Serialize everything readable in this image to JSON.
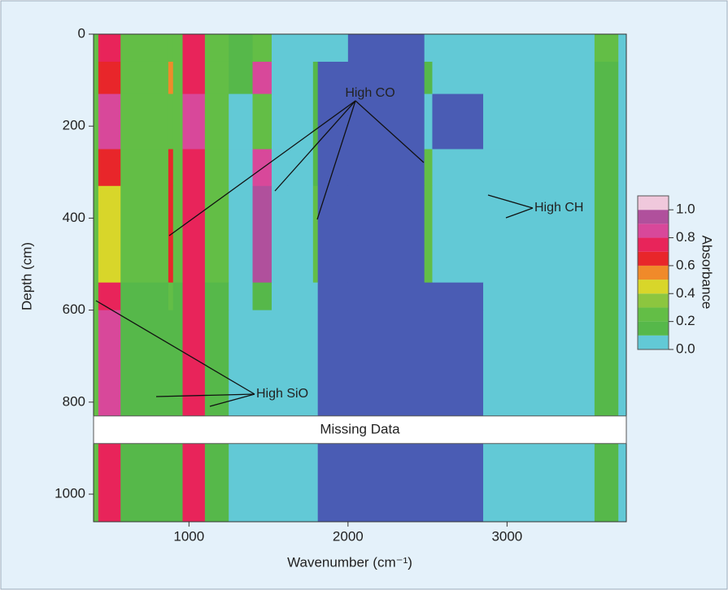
{
  "chart_data": {
    "type": "heatmap",
    "xlabel": "Wavenumber (cm⁻¹)",
    "ylabel": "Depth (cm)",
    "xlim": [
      400,
      3750
    ],
    "ylim": [
      0,
      1060
    ],
    "xticks": [
      1000,
      2000,
      3000
    ],
    "yticks": [
      0,
      200,
      400,
      600,
      800,
      1000
    ],
    "x_edges": [
      400,
      430,
      570,
      870,
      900,
      960,
      1100,
      1250,
      1400,
      1520,
      1780,
      1810,
      2000,
      2480,
      2530,
      2850,
      3550,
      3700,
      3750
    ],
    "y_edges": [
      0,
      60,
      130,
      250,
      330,
      540,
      600,
      830,
      890,
      1060
    ],
    "z": [
      [
        0.25,
        0.75,
        0.25,
        0.25,
        0.25,
        0.75,
        0.25,
        0.15,
        0.25,
        0.05,
        0.05,
        0.0,
        -0.1,
        0.05,
        0.05,
        0.05,
        0.25,
        0.05
      ],
      [
        0.25,
        0.65,
        0.25,
        0.55,
        0.25,
        0.75,
        0.25,
        0.15,
        0.85,
        0.05,
        0.15,
        -0.05,
        -0.1,
        0.15,
        0.05,
        0.05,
        0.15,
        0.05
      ],
      [
        0.25,
        0.85,
        0.25,
        0.25,
        0.25,
        0.85,
        0.25,
        0.05,
        0.25,
        0.05,
        0.15,
        -0.05,
        -0.1,
        0.05,
        -0.05,
        0.05,
        0.15,
        0.05
      ],
      [
        0.25,
        0.65,
        0.25,
        0.65,
        0.25,
        0.75,
        0.25,
        0.05,
        0.85,
        0.05,
        0.15,
        -0.05,
        -0.1,
        0.25,
        0.05,
        0.05,
        0.15,
        0.05
      ],
      [
        0.25,
        0.45,
        0.25,
        0.65,
        0.25,
        0.75,
        0.25,
        0.05,
        0.95,
        0.05,
        0.25,
        -0.05,
        -0.1,
        0.25,
        0.05,
        0.05,
        0.15,
        0.05
      ],
      [
        0.25,
        0.75,
        0.15,
        0.25,
        0.15,
        0.75,
        0.15,
        0.05,
        0.15,
        0.05,
        0.05,
        -0.05,
        -0.1,
        -0.05,
        -0.05,
        0.05,
        0.15,
        0.05
      ],
      [
        0.25,
        0.85,
        0.15,
        0.15,
        0.15,
        0.75,
        0.15,
        0.05,
        0.05,
        0.05,
        0.05,
        -0.05,
        -0.1,
        -0.05,
        -0.05,
        0.05,
        0.15,
        0.05
      ],
      [
        null,
        null,
        null,
        null,
        null,
        null,
        null,
        null,
        null,
        null,
        null,
        null,
        null,
        null,
        null,
        null,
        null,
        null
      ],
      [
        0.25,
        0.75,
        0.15,
        0.15,
        0.15,
        0.75,
        0.15,
        0.05,
        0.05,
        0.05,
        0.05,
        -0.05,
        -0.1,
        -0.05,
        -0.05,
        0.05,
        0.15,
        0.05
      ]
    ],
    "under_color": "#4a5cb4",
    "colorbar": {
      "label": "Absorbance",
      "bounds": [
        0,
        0.1,
        0.2,
        0.3,
        0.4,
        0.5,
        0.6,
        0.7,
        0.8,
        0.9,
        1.0,
        1.1
      ],
      "colors": [
        "#62c9d6",
        "#56b84a",
        "#63be46",
        "#8cc63f",
        "#d8d62a",
        "#f08a2a",
        "#e8262a",
        "#e8245a",
        "#d8489a",
        "#b0509c",
        "#f0c8dc"
      ],
      "ticks": [
        {
          "value": 0,
          "label": "0.0"
        },
        0.2,
        0.4,
        0.6,
        0.8,
        {
          "value": 1,
          "label": "1.0"
        }
      ]
    },
    "annotations": {
      "high_co": "High CO",
      "high_ch": "High CH",
      "high_sio": "High SiO",
      "missing": "Missing Data"
    }
  }
}
